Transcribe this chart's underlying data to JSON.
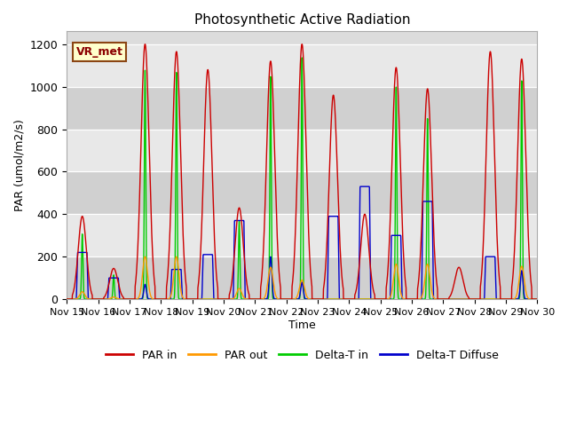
{
  "title": "Photosynthetic Active Radiation",
  "xlabel": "Time",
  "ylabel": "PAR (umol/m2/s)",
  "ylim": [
    0,
    1260
  ],
  "yticks": [
    0,
    200,
    400,
    600,
    800,
    1000,
    1200
  ],
  "legend_label": "VR_met",
  "series_colors": {
    "PAR in": "#cc0000",
    "PAR out": "#ff9900",
    "Delta-T in": "#00cc00",
    "Delta-T Diffuse": "#0000cc"
  },
  "bg_color": "#dcdcdc",
  "fig_color": "#ffffff",
  "n_days": 15,
  "start_day": 15,
  "points_per_day": 144,
  "day_peaks": {
    "15": {
      "par_in": 390,
      "par_out": 35,
      "dt_in": 310,
      "dt_diff": 220,
      "dt_diff_flat": 1
    },
    "16": {
      "par_in": 145,
      "par_out": 10,
      "dt_in": 115,
      "dt_diff": 100,
      "dt_diff_flat": 1
    },
    "17": {
      "par_in": 1200,
      "par_out": 200,
      "dt_in": 1090,
      "dt_diff": 70,
      "dt_diff_flat": 0
    },
    "18": {
      "par_in": 1165,
      "par_out": 200,
      "dt_in": 1080,
      "dt_diff": 140,
      "dt_diff_flat": 1
    },
    "19": {
      "par_in": 1080,
      "par_out": 0,
      "dt_in": 0,
      "dt_diff": 210,
      "dt_diff_flat": 1
    },
    "20": {
      "par_in": 430,
      "par_out": 50,
      "dt_in": 370,
      "dt_diff": 370,
      "dt_diff_flat": 1
    },
    "21": {
      "par_in": 1120,
      "par_out": 150,
      "dt_in": 1060,
      "dt_diff": 200,
      "dt_diff_flat": 0
    },
    "22": {
      "par_in": 1200,
      "par_out": 90,
      "dt_in": 1150,
      "dt_diff": 80,
      "dt_diff_flat": 0
    },
    "23": {
      "par_in": 960,
      "par_out": 0,
      "dt_in": 0,
      "dt_diff": 390,
      "dt_diff_flat": 1
    },
    "24": {
      "par_in": 400,
      "par_out": 0,
      "dt_in": 0,
      "dt_diff": 530,
      "dt_diff_flat": 1
    },
    "25": {
      "par_in": 1090,
      "par_out": 165,
      "dt_in": 1010,
      "dt_diff": 300,
      "dt_diff_flat": 1
    },
    "26": {
      "par_in": 990,
      "par_out": 165,
      "dt_in": 860,
      "dt_diff": 460,
      "dt_diff_flat": 1
    },
    "27": {
      "par_in": 150,
      "par_out": 0,
      "dt_in": 0,
      "dt_diff": 0,
      "dt_diff_flat": 0
    },
    "28": {
      "par_in": 1165,
      "par_out": 0,
      "dt_in": 0,
      "dt_diff": 200,
      "dt_diff_flat": 1
    },
    "29": {
      "par_in": 1130,
      "par_out": 155,
      "dt_in": 1040,
      "dt_diff": 135,
      "dt_diff_flat": 0
    }
  }
}
